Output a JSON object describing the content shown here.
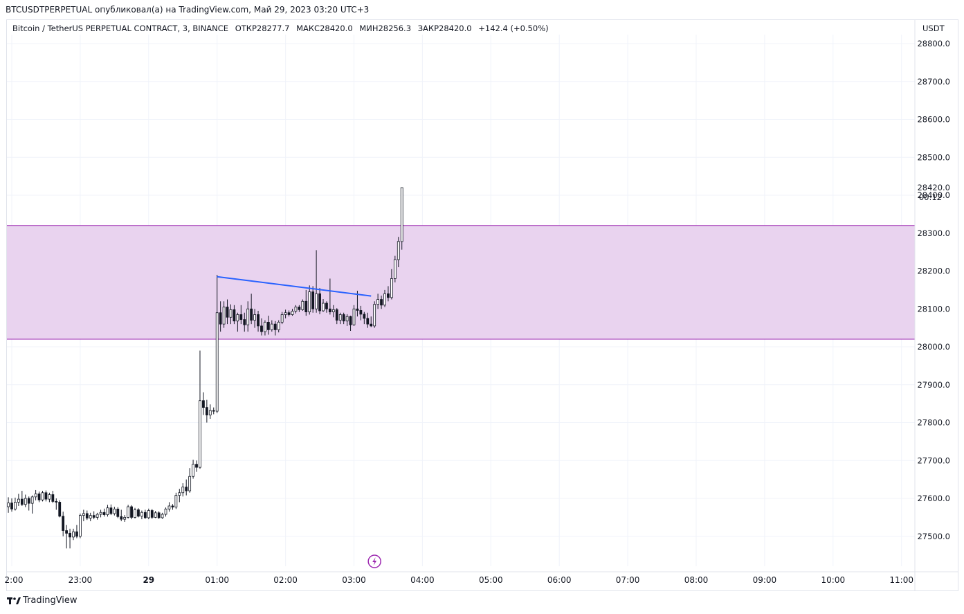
{
  "caption": "BTCUSDTPERPETUAL опубликовал(а) на TradingView.com, Май 29, 2023 03:20 UTC+3",
  "legend": {
    "symbol": "Bitcoin / TetherUS PERPETUAL CONTRACT, 3, BINANCE",
    "open": "ОТКР28277.7",
    "high": "МАКС28420.0",
    "low": "МИН28256.3",
    "close": "ЗАКР28420.0",
    "change": "+142.4 (+0.50%)"
  },
  "currency": "USDT",
  "footer": {
    "brand": "TradingView"
  },
  "colors": {
    "zone_fill": "#e9d3ef",
    "zone_border": "#9c27b0",
    "trendline": "#2962ff",
    "candle": "#131722",
    "grid": "#f0f3fa",
    "lightning": "#9c27b0"
  },
  "chart_data": {
    "type": "candlestick",
    "title": "Bitcoin / TetherUS PERPETUAL CONTRACT, 3, BINANCE",
    "y_axis": {
      "label": "USDT",
      "range": [
        27415,
        28900
      ],
      "ticks": [
        28800,
        28700,
        28600,
        28500,
        28400,
        28300,
        28200,
        28100,
        28000,
        27900,
        27800,
        27700,
        27600,
        27500
      ],
      "tick_labels": [
        "28800.0",
        "28700.0",
        "28600.0",
        "28500.0",
        "28400.0",
        "28300.0",
        "28200.0",
        "28100.0",
        "28000.0",
        "27900.0",
        "27800.0",
        "27700.0",
        "27600.0",
        "27500.0"
      ]
    },
    "x_axis": {
      "ticks": [
        22.0,
        23.0,
        24.0,
        25.0,
        26.0,
        27.0,
        28.0,
        29.0,
        30.0,
        31.0,
        32.0,
        33.0,
        34.0,
        35.0
      ],
      "tick_labels": [
        "2:00",
        "23:00",
        "29",
        "01:00",
        "02:00",
        "03:00",
        "04:00",
        "05:00",
        "06:00",
        "07:00",
        "08:00",
        "09:00",
        "10:00",
        "11:00"
      ]
    },
    "last_price": {
      "value": 28420.0,
      "label": "28420.0",
      "countdown": "00:12"
    },
    "zone": {
      "top": 28320,
      "bottom": 28020
    },
    "trendline": {
      "start": [
        25.0,
        28185
      ],
      "end": [
        27.25,
        28134
      ]
    },
    "event_marker_time": 27.3,
    "candles": [
      {
        "t": 21.95,
        "o": 27578,
        "h": 27603,
        "l": 27562,
        "c": 27588
      },
      {
        "t": 22.0,
        "o": 27588,
        "h": 27600,
        "l": 27565,
        "c": 27572
      },
      {
        "t": 22.05,
        "o": 27572,
        "h": 27602,
        "l": 27568,
        "c": 27590
      },
      {
        "t": 22.1,
        "o": 27590,
        "h": 27612,
        "l": 27580,
        "c": 27598
      },
      {
        "t": 22.15,
        "o": 27598,
        "h": 27620,
        "l": 27580,
        "c": 27584
      },
      {
        "t": 22.2,
        "o": 27584,
        "h": 27610,
        "l": 27577,
        "c": 27600
      },
      {
        "t": 22.25,
        "o": 27600,
        "h": 27605,
        "l": 27568,
        "c": 27587
      },
      {
        "t": 22.3,
        "o": 27587,
        "h": 27608,
        "l": 27560,
        "c": 27604
      },
      {
        "t": 22.35,
        "o": 27604,
        "h": 27622,
        "l": 27595,
        "c": 27612
      },
      {
        "t": 22.4,
        "o": 27612,
        "h": 27618,
        "l": 27590,
        "c": 27596
      },
      {
        "t": 22.45,
        "o": 27596,
        "h": 27620,
        "l": 27592,
        "c": 27615
      },
      {
        "t": 22.5,
        "o": 27615,
        "h": 27621,
        "l": 27592,
        "c": 27598
      },
      {
        "t": 22.55,
        "o": 27598,
        "h": 27615,
        "l": 27590,
        "c": 27610
      },
      {
        "t": 22.6,
        "o": 27610,
        "h": 27620,
        "l": 27588,
        "c": 27592
      },
      {
        "t": 22.65,
        "o": 27592,
        "h": 27600,
        "l": 27570,
        "c": 27590
      },
      {
        "t": 22.7,
        "o": 27590,
        "h": 27595,
        "l": 27550,
        "c": 27553
      },
      {
        "t": 22.75,
        "o": 27553,
        "h": 27565,
        "l": 27500,
        "c": 27515
      },
      {
        "t": 22.8,
        "o": 27515,
        "h": 27530,
        "l": 27468,
        "c": 27508
      },
      {
        "t": 22.85,
        "o": 27508,
        "h": 27520,
        "l": 27468,
        "c": 27498
      },
      {
        "t": 22.9,
        "o": 27498,
        "h": 27520,
        "l": 27490,
        "c": 27512
      },
      {
        "t": 22.95,
        "o": 27512,
        "h": 27530,
        "l": 27495,
        "c": 27500
      },
      {
        "t": 23.0,
        "o": 27500,
        "h": 27560,
        "l": 27495,
        "c": 27555
      },
      {
        "t": 23.05,
        "o": 27555,
        "h": 27570,
        "l": 27540,
        "c": 27560
      },
      {
        "t": 23.1,
        "o": 27560,
        "h": 27568,
        "l": 27543,
        "c": 27548
      },
      {
        "t": 23.15,
        "o": 27548,
        "h": 27562,
        "l": 27540,
        "c": 27555
      },
      {
        "t": 23.2,
        "o": 27555,
        "h": 27566,
        "l": 27545,
        "c": 27550
      },
      {
        "t": 23.25,
        "o": 27550,
        "h": 27562,
        "l": 27544,
        "c": 27558
      },
      {
        "t": 23.3,
        "o": 27558,
        "h": 27570,
        "l": 27550,
        "c": 27563
      },
      {
        "t": 23.35,
        "o": 27563,
        "h": 27573,
        "l": 27552,
        "c": 27557
      },
      {
        "t": 23.4,
        "o": 27557,
        "h": 27583,
        "l": 27552,
        "c": 27575
      },
      {
        "t": 23.45,
        "o": 27575,
        "h": 27584,
        "l": 27556,
        "c": 27560
      },
      {
        "t": 23.5,
        "o": 27560,
        "h": 27578,
        "l": 27555,
        "c": 27572
      },
      {
        "t": 23.55,
        "o": 27572,
        "h": 27577,
        "l": 27548,
        "c": 27552
      },
      {
        "t": 23.6,
        "o": 27552,
        "h": 27570,
        "l": 27540,
        "c": 27545
      },
      {
        "t": 23.65,
        "o": 27545,
        "h": 27556,
        "l": 27538,
        "c": 27550
      },
      {
        "t": 23.7,
        "o": 27550,
        "h": 27583,
        "l": 27547,
        "c": 27578
      },
      {
        "t": 23.75,
        "o": 27578,
        "h": 27582,
        "l": 27545,
        "c": 27550
      },
      {
        "t": 23.8,
        "o": 27550,
        "h": 27575,
        "l": 27547,
        "c": 27570
      },
      {
        "t": 23.85,
        "o": 27570,
        "h": 27574,
        "l": 27550,
        "c": 27553
      },
      {
        "t": 23.9,
        "o": 27553,
        "h": 27568,
        "l": 27545,
        "c": 27563
      },
      {
        "t": 23.95,
        "o": 27563,
        "h": 27570,
        "l": 27546,
        "c": 27549
      },
      {
        "t": 24.0,
        "o": 27549,
        "h": 27573,
        "l": 27545,
        "c": 27568
      },
      {
        "t": 24.05,
        "o": 27568,
        "h": 27572,
        "l": 27546,
        "c": 27550
      },
      {
        "t": 24.1,
        "o": 27550,
        "h": 27567,
        "l": 27548,
        "c": 27562
      },
      {
        "t": 24.15,
        "o": 27562,
        "h": 27566,
        "l": 27546,
        "c": 27549
      },
      {
        "t": 24.2,
        "o": 27549,
        "h": 27562,
        "l": 27546,
        "c": 27558
      },
      {
        "t": 24.25,
        "o": 27558,
        "h": 27576,
        "l": 27552,
        "c": 27572
      },
      {
        "t": 24.3,
        "o": 27572,
        "h": 27590,
        "l": 27565,
        "c": 27580
      },
      {
        "t": 24.35,
        "o": 27580,
        "h": 27585,
        "l": 27570,
        "c": 27577
      },
      {
        "t": 24.4,
        "o": 27577,
        "h": 27615,
        "l": 27572,
        "c": 27608
      },
      {
        "t": 24.45,
        "o": 27608,
        "h": 27625,
        "l": 27590,
        "c": 27615
      },
      {
        "t": 24.5,
        "o": 27615,
        "h": 27640,
        "l": 27605,
        "c": 27630
      },
      {
        "t": 24.55,
        "o": 27630,
        "h": 27650,
        "l": 27608,
        "c": 27620
      },
      {
        "t": 24.6,
        "o": 27620,
        "h": 27680,
        "l": 27615,
        "c": 27658
      },
      {
        "t": 24.65,
        "o": 27658,
        "h": 27702,
        "l": 27652,
        "c": 27690
      },
      {
        "t": 24.7,
        "o": 27690,
        "h": 27700,
        "l": 27670,
        "c": 27682
      },
      {
        "t": 24.75,
        "o": 27682,
        "h": 27990,
        "l": 27678,
        "c": 27858
      },
      {
        "t": 24.8,
        "o": 27858,
        "h": 27880,
        "l": 27820,
        "c": 27840
      },
      {
        "t": 24.85,
        "o": 27840,
        "h": 27860,
        "l": 27800,
        "c": 27820
      },
      {
        "t": 24.9,
        "o": 27820,
        "h": 27848,
        "l": 27810,
        "c": 27832
      },
      {
        "t": 24.95,
        "o": 27832,
        "h": 27840,
        "l": 27822,
        "c": 27830
      },
      {
        "t": 25.0,
        "o": 27830,
        "h": 28190,
        "l": 27825,
        "c": 28090
      },
      {
        "t": 25.05,
        "o": 28090,
        "h": 28120,
        "l": 28040,
        "c": 28060
      },
      {
        "t": 25.1,
        "o": 28060,
        "h": 28120,
        "l": 28050,
        "c": 28105
      },
      {
        "t": 25.15,
        "o": 28105,
        "h": 28125,
        "l": 28060,
        "c": 28078
      },
      {
        "t": 25.2,
        "o": 28078,
        "h": 28112,
        "l": 28060,
        "c": 28098
      },
      {
        "t": 25.25,
        "o": 28098,
        "h": 28110,
        "l": 28060,
        "c": 28068
      },
      {
        "t": 25.3,
        "o": 28068,
        "h": 28090,
        "l": 28040,
        "c": 28085
      },
      {
        "t": 25.35,
        "o": 28085,
        "h": 28110,
        "l": 28060,
        "c": 28072
      },
      {
        "t": 25.4,
        "o": 28072,
        "h": 28090,
        "l": 28040,
        "c": 28058
      },
      {
        "t": 25.45,
        "o": 28058,
        "h": 28120,
        "l": 28040,
        "c": 28100
      },
      {
        "t": 25.5,
        "o": 28100,
        "h": 28140,
        "l": 28060,
        "c": 28070
      },
      {
        "t": 25.55,
        "o": 28070,
        "h": 28100,
        "l": 28050,
        "c": 28085
      },
      {
        "t": 25.6,
        "o": 28085,
        "h": 28095,
        "l": 28040,
        "c": 28055
      },
      {
        "t": 25.65,
        "o": 28055,
        "h": 28075,
        "l": 28030,
        "c": 28040
      },
      {
        "t": 25.7,
        "o": 28040,
        "h": 28070,
        "l": 28030,
        "c": 28065
      },
      {
        "t": 25.75,
        "o": 28065,
        "h": 28082,
        "l": 28032,
        "c": 28045
      },
      {
        "t": 25.8,
        "o": 28045,
        "h": 28070,
        "l": 28040,
        "c": 28060
      },
      {
        "t": 25.85,
        "o": 28060,
        "h": 28068,
        "l": 28030,
        "c": 28045
      },
      {
        "t": 25.9,
        "o": 28045,
        "h": 28070,
        "l": 28038,
        "c": 28065
      },
      {
        "t": 25.95,
        "o": 28065,
        "h": 28092,
        "l": 28060,
        "c": 28085
      },
      {
        "t": 26.0,
        "o": 28085,
        "h": 28098,
        "l": 28075,
        "c": 28090
      },
      {
        "t": 26.05,
        "o": 28090,
        "h": 28096,
        "l": 28080,
        "c": 28085
      },
      {
        "t": 26.1,
        "o": 28085,
        "h": 28100,
        "l": 28082,
        "c": 28094
      },
      {
        "t": 26.15,
        "o": 28094,
        "h": 28110,
        "l": 28088,
        "c": 28105
      },
      {
        "t": 26.2,
        "o": 28105,
        "h": 28110,
        "l": 28092,
        "c": 28098
      },
      {
        "t": 26.25,
        "o": 28098,
        "h": 28125,
        "l": 28095,
        "c": 28120
      },
      {
        "t": 26.3,
        "o": 28120,
        "h": 28150,
        "l": 28082,
        "c": 28092
      },
      {
        "t": 26.35,
        "o": 28092,
        "h": 28162,
        "l": 28085,
        "c": 28145
      },
      {
        "t": 26.4,
        "o": 28145,
        "h": 28160,
        "l": 28090,
        "c": 28100
      },
      {
        "t": 26.45,
        "o": 28100,
        "h": 28255,
        "l": 28090,
        "c": 28140
      },
      {
        "t": 26.5,
        "o": 28140,
        "h": 28155,
        "l": 28086,
        "c": 28095
      },
      {
        "t": 26.55,
        "o": 28095,
        "h": 28126,
        "l": 28092,
        "c": 28115
      },
      {
        "t": 26.6,
        "o": 28115,
        "h": 28120,
        "l": 28090,
        "c": 28100
      },
      {
        "t": 26.65,
        "o": 28100,
        "h": 28180,
        "l": 28085,
        "c": 28092
      },
      {
        "t": 26.7,
        "o": 28092,
        "h": 28110,
        "l": 28078,
        "c": 28098
      },
      {
        "t": 26.75,
        "o": 28098,
        "h": 28102,
        "l": 28060,
        "c": 28070
      },
      {
        "t": 26.8,
        "o": 28070,
        "h": 28090,
        "l": 28060,
        "c": 28085
      },
      {
        "t": 26.85,
        "o": 28085,
        "h": 28090,
        "l": 28060,
        "c": 28068
      },
      {
        "t": 26.9,
        "o": 28068,
        "h": 28086,
        "l": 28055,
        "c": 28080
      },
      {
        "t": 26.95,
        "o": 28080,
        "h": 28082,
        "l": 28042,
        "c": 28058
      },
      {
        "t": 27.0,
        "o": 28058,
        "h": 28110,
        "l": 28055,
        "c": 28100
      },
      {
        "t": 27.05,
        "o": 28100,
        "h": 28148,
        "l": 28080,
        "c": 28096
      },
      {
        "t": 27.1,
        "o": 28096,
        "h": 28108,
        "l": 28070,
        "c": 28086
      },
      {
        "t": 27.15,
        "o": 28086,
        "h": 28092,
        "l": 28060,
        "c": 28075
      },
      {
        "t": 27.2,
        "o": 28075,
        "h": 28090,
        "l": 28050,
        "c": 28060
      },
      {
        "t": 27.25,
        "o": 28060,
        "h": 28080,
        "l": 28052,
        "c": 28055
      },
      {
        "t": 27.3,
        "o": 28055,
        "h": 28120,
        "l": 28050,
        "c": 28112
      },
      {
        "t": 27.35,
        "o": 28112,
        "h": 28140,
        "l": 28100,
        "c": 28125
      },
      {
        "t": 27.4,
        "o": 28125,
        "h": 28135,
        "l": 28100,
        "c": 28110
      },
      {
        "t": 27.45,
        "o": 28110,
        "h": 28150,
        "l": 28105,
        "c": 28140
      },
      {
        "t": 27.5,
        "o": 28140,
        "h": 28160,
        "l": 28120,
        "c": 28130
      },
      {
        "t": 27.55,
        "o": 28130,
        "h": 28205,
        "l": 28125,
        "c": 28180
      },
      {
        "t": 27.6,
        "o": 28180,
        "h": 28240,
        "l": 28170,
        "c": 28230
      },
      {
        "t": 27.65,
        "o": 28230,
        "h": 28290,
        "l": 28210,
        "c": 28278
      },
      {
        "t": 27.7,
        "o": 28277.7,
        "h": 28420,
        "l": 28256.3,
        "c": 28420
      }
    ]
  }
}
